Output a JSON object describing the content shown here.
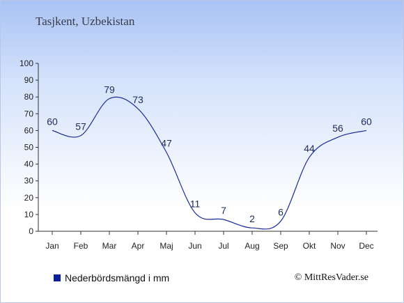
{
  "chart_data": {
    "type": "line",
    "title": "Tasjkent, Uzbekistan",
    "categories": [
      "Jan",
      "Feb",
      "Mar",
      "Apr",
      "Maj",
      "Jun",
      "Jul",
      "Aug",
      "Sep",
      "Okt",
      "Nov",
      "Dec"
    ],
    "series": [
      {
        "name": "Nederbördsmängd i mm",
        "values": [
          60,
          57,
          79,
          73,
          47,
          11,
          7,
          2,
          6,
          44,
          56,
          60
        ]
      }
    ],
    "ylim": [
      0,
      100
    ],
    "yticks": [
      0,
      10,
      20,
      30,
      40,
      50,
      60,
      70,
      80,
      90,
      100
    ],
    "grid": false,
    "legend_position": "bottom-left",
    "line_color": "#1a2a9c"
  },
  "copyright": "© MittResVader.se"
}
